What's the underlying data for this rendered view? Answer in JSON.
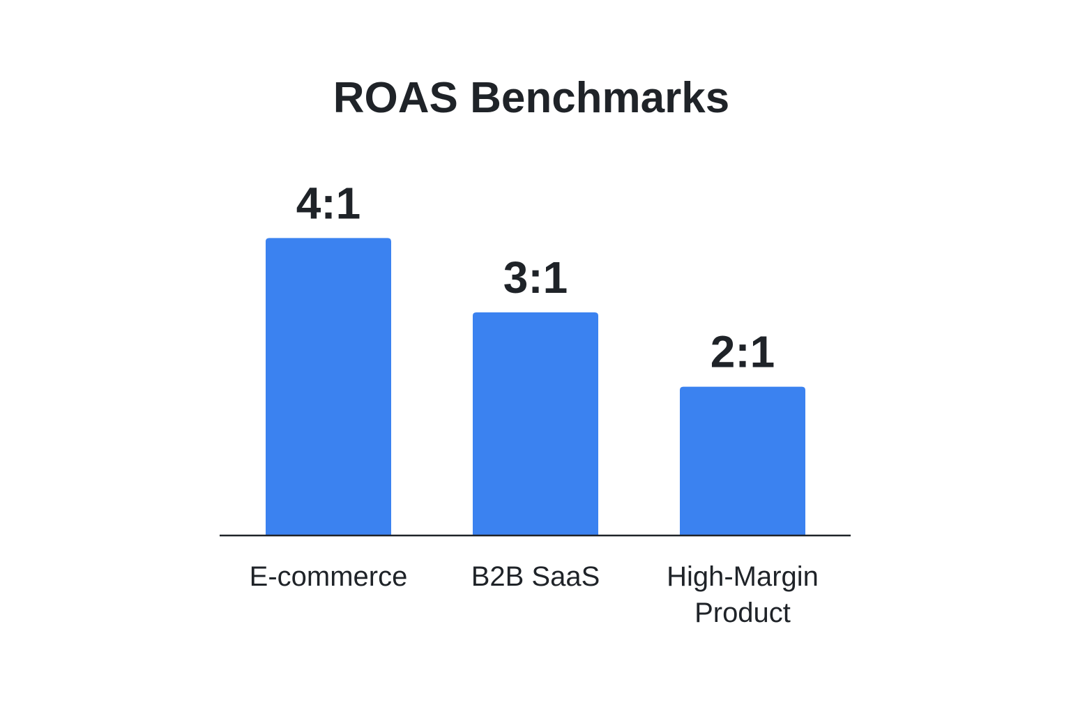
{
  "chart_data": {
    "type": "bar",
    "title": "ROAS Benchmarks",
    "categories": [
      "E-commerce",
      "B2B SaaS",
      "High-Margin Product"
    ],
    "category_lines": [
      [
        "E-commerce"
      ],
      [
        "B2B SaaS"
      ],
      [
        "High-Margin",
        "Product"
      ]
    ],
    "values": [
      4,
      3,
      2
    ],
    "value_labels": [
      "4:1",
      "3:1",
      "2:1"
    ],
    "xlabel": "",
    "ylabel": "",
    "ylim": [
      0,
      4.35
    ],
    "grid": false,
    "legend": "none",
    "bar_color": "#3b82f0",
    "axis_color": "#1f2328",
    "text_color": "#1f2328"
  }
}
